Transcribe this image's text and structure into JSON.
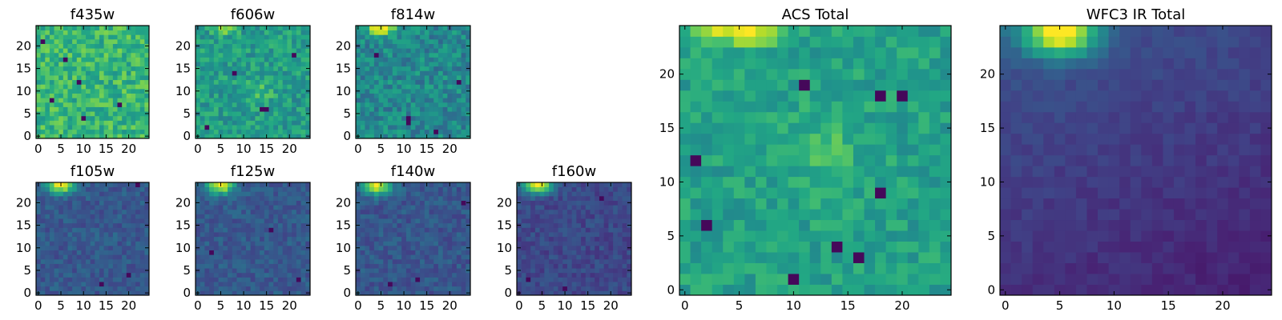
{
  "chart_data": [
    {
      "type": "heatmap",
      "title": "f435w",
      "colormap": "viridis",
      "grid_size": 25,
      "xlim": [
        -0.5,
        24.5
      ],
      "ylim": [
        -0.5,
        24.5
      ],
      "xticks": [
        0,
        5,
        10,
        15,
        20
      ],
      "yticks": [
        0,
        5,
        10,
        15,
        20
      ],
      "bright_spot": null,
      "mean_level": 0.66,
      "noise_level": 0.15,
      "dark_pixels": [
        [
          3,
          8
        ],
        [
          10,
          4
        ],
        [
          18,
          7
        ],
        [
          1,
          21
        ],
        [
          6,
          17
        ],
        [
          9,
          12
        ]
      ]
    },
    {
      "type": "heatmap",
      "title": "f606w",
      "colormap": "viridis",
      "grid_size": 25,
      "xlim": [
        -0.5,
        24.5
      ],
      "ylim": [
        -0.5,
        24.5
      ],
      "xticks": [
        0,
        5,
        10,
        15,
        20
      ],
      "yticks": [
        0,
        5,
        10,
        15,
        20
      ],
      "bright_spot": {
        "x": 6,
        "y": 24,
        "width": 2.5,
        "height": 1.2,
        "amplitude": 0.35
      },
      "center_glow": {
        "x": 13,
        "y": 10,
        "width": 4,
        "height": 3,
        "amplitude": 0.12
      },
      "mean_level": 0.55,
      "noise_level": 0.13,
      "dark_pixels": [
        [
          14,
          6
        ],
        [
          15,
          6
        ],
        [
          2,
          2
        ],
        [
          21,
          18
        ],
        [
          8,
          14
        ]
      ]
    },
    {
      "type": "heatmap",
      "title": "f814w",
      "colormap": "viridis",
      "grid_size": 25,
      "xlim": [
        -0.5,
        24.5
      ],
      "ylim": [
        -0.5,
        24.5
      ],
      "xticks": [
        0,
        5,
        10,
        15,
        20
      ],
      "yticks": [
        0,
        5,
        10,
        15,
        20
      ],
      "bright_spot": {
        "x": 5,
        "y": 24,
        "width": 3,
        "height": 1.5,
        "amplitude": 0.55
      },
      "mean_level": 0.47,
      "noise_level": 0.14,
      "dark_pixels": [
        [
          11,
          3
        ],
        [
          11,
          4
        ],
        [
          22,
          12
        ],
        [
          4,
          18
        ],
        [
          17,
          1
        ]
      ]
    },
    {
      "type": "heatmap",
      "title": "f105w",
      "colormap": "viridis",
      "grid_size": 25,
      "xlim": [
        -0.5,
        24.5
      ],
      "ylim": [
        -0.5,
        24.5
      ],
      "xticks": [
        0,
        5,
        10,
        15,
        20
      ],
      "yticks": [
        0,
        5,
        10,
        15,
        20
      ],
      "bright_spot": {
        "x": 5,
        "y": 24,
        "width": 3.2,
        "height": 2.0,
        "amplitude": 0.7
      },
      "mean_level": 0.28,
      "noise_level": 0.08,
      "dark_pixels": [
        [
          22,
          24
        ],
        [
          14,
          2
        ],
        [
          20,
          4
        ]
      ]
    },
    {
      "type": "heatmap",
      "title": "f125w",
      "colormap": "viridis",
      "grid_size": 25,
      "xlim": [
        -0.5,
        24.5
      ],
      "ylim": [
        -0.5,
        24.5
      ],
      "xticks": [
        0,
        5,
        10,
        15,
        20
      ],
      "yticks": [
        0,
        5,
        10,
        15,
        20
      ],
      "bright_spot": {
        "x": 5,
        "y": 24,
        "width": 3.0,
        "height": 2.0,
        "amplitude": 0.72
      },
      "mean_level": 0.28,
      "noise_level": 0.08,
      "dark_pixels": [
        [
          22,
          3
        ],
        [
          16,
          14
        ],
        [
          3,
          9
        ]
      ]
    },
    {
      "type": "heatmap",
      "title": "f140w",
      "colormap": "viridis",
      "grid_size": 25,
      "xlim": [
        -0.5,
        24.5
      ],
      "ylim": [
        -0.5,
        24.5
      ],
      "xticks": [
        0,
        5,
        10,
        15,
        20
      ],
      "yticks": [
        0,
        5,
        10,
        15,
        20
      ],
      "bright_spot": {
        "x": 4,
        "y": 24,
        "width": 3.2,
        "height": 2.0,
        "amplitude": 0.74
      },
      "mean_level": 0.27,
      "noise_level": 0.08,
      "dark_pixels": [
        [
          23,
          20
        ],
        [
          13,
          3
        ],
        [
          7,
          2
        ]
      ]
    },
    {
      "type": "heatmap",
      "title": "f160w",
      "colormap": "viridis",
      "grid_size": 25,
      "xlim": [
        -0.5,
        24.5
      ],
      "ylim": [
        -0.5,
        24.5
      ],
      "xticks": [
        0,
        5,
        10,
        15,
        20
      ],
      "yticks": [
        0,
        5,
        10,
        15,
        20
      ],
      "bright_spot": {
        "x": 4,
        "y": 24,
        "width": 3.2,
        "height": 2.0,
        "amplitude": 0.76
      },
      "mean_level": 0.22,
      "noise_level": 0.07,
      "dark_pixels": [
        [
          18,
          21
        ],
        [
          10,
          1
        ],
        [
          2,
          3
        ]
      ]
    },
    {
      "type": "heatmap",
      "title": "ACS Total",
      "colormap": "viridis",
      "grid_size": 25,
      "xlim": [
        -0.5,
        24.5
      ],
      "ylim": [
        -0.5,
        24.5
      ],
      "xticks": [
        0,
        5,
        10,
        15,
        20
      ],
      "yticks": [
        0,
        5,
        10,
        15,
        20
      ],
      "bright_spot": {
        "x": 5,
        "y": 24,
        "width": 3.5,
        "height": 1.3,
        "amplitude": 0.45
      },
      "center_glow": {
        "x": 13,
        "y": 13,
        "width": 3.5,
        "height": 4,
        "amplitude": 0.12
      },
      "mean_level": 0.57,
      "noise_level": 0.1,
      "dark_pixels": [
        [
          1,
          12
        ],
        [
          2,
          6
        ],
        [
          10,
          1
        ],
        [
          16,
          3
        ],
        [
          18,
          18
        ],
        [
          20,
          18
        ],
        [
          14,
          4
        ],
        [
          11,
          19
        ],
        [
          18,
          9
        ]
      ]
    },
    {
      "type": "heatmap",
      "title": "WFC3 IR Total",
      "colormap": "viridis",
      "grid_size": 25,
      "xlim": [
        -0.5,
        24.5
      ],
      "ylim": [
        -0.5,
        24.5
      ],
      "xticks": [
        0,
        5,
        10,
        15,
        20
      ],
      "yticks": [
        0,
        5,
        10,
        15,
        20
      ],
      "bright_spot": {
        "x": 5,
        "y": 24,
        "width": 3.5,
        "height": 2.3,
        "amplitude": 0.82
      },
      "mean_level": 0.14,
      "noise_level": 0.035,
      "gradient": "fades toward right and bottom",
      "dark_pixels": []
    }
  ]
}
